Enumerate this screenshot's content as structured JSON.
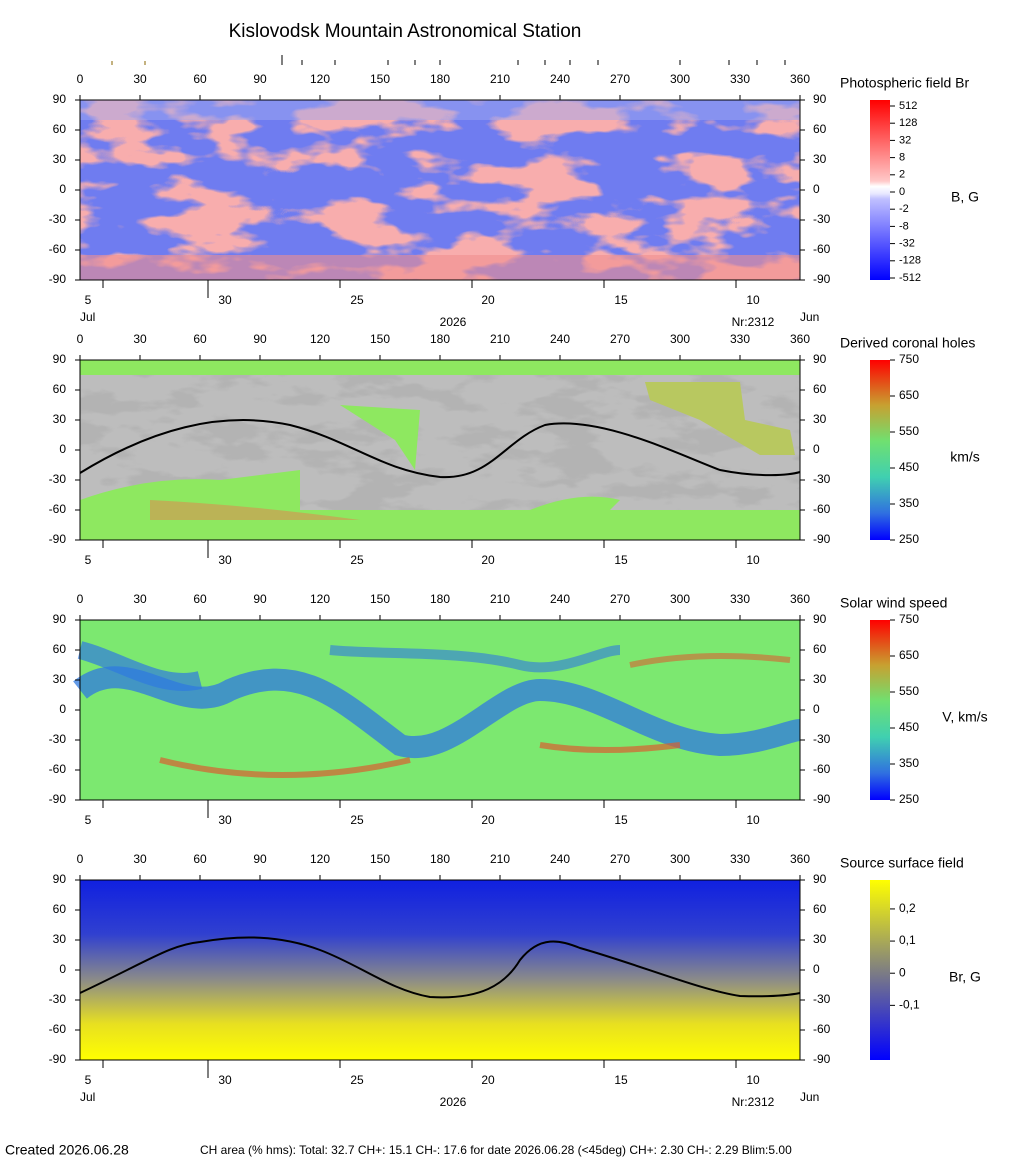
{
  "title": "Kislovodsk Mountain Astronomical Station",
  "xlim": [
    0,
    360
  ],
  "ylim": [
    -90,
    90
  ],
  "xticks": [
    0,
    30,
    60,
    90,
    120,
    150,
    180,
    210,
    240,
    270,
    300,
    330,
    360
  ],
  "yticks": [
    90,
    60,
    30,
    0,
    -30,
    -60,
    -90
  ],
  "date_ticks": [
    5,
    30,
    25,
    20,
    15,
    10
  ],
  "date_labels": {
    "start_month": "Jul",
    "year": "2026",
    "rotation": "Nr:2312",
    "end_month": "Jun"
  },
  "panels": [
    {
      "title": "Photospheric field Br",
      "unit": "B, G",
      "colorbar_ticks": [
        512,
        128,
        32,
        8,
        2,
        0,
        -2,
        -8,
        -32,
        -128,
        -512
      ]
    },
    {
      "title": "Derived coronal holes",
      "unit": "km/s",
      "clim": [
        250,
        750
      ],
      "colorbar_ticks": [
        750,
        650,
        550,
        450,
        350,
        250
      ]
    },
    {
      "title": "Solar wind speed",
      "unit": "V, km/s",
      "clim": [
        250,
        750
      ],
      "colorbar_ticks": [
        750,
        650,
        550,
        450,
        350,
        250
      ]
    },
    {
      "title": "Source surface field",
      "unit": "Br, G",
      "clim": [
        -0.27,
        0.29
      ],
      "colorbar_ticks": [
        {
          "value": 0.2,
          "label": "0,2"
        },
        {
          "value": 0.1,
          "label": "0,1"
        },
        0,
        {
          "value": -0.1,
          "label": "-0,1"
        }
      ]
    }
  ],
  "footer": {
    "created": "Created  2026.06.28",
    "ch_area": "CH area (% hms): Total: 32.7 CH+: 15.1   CH-: 17.6 for date 2026.06.28 (<45deg) CH+: 2.30    CH-: 2.29 Blim:5.00"
  }
}
